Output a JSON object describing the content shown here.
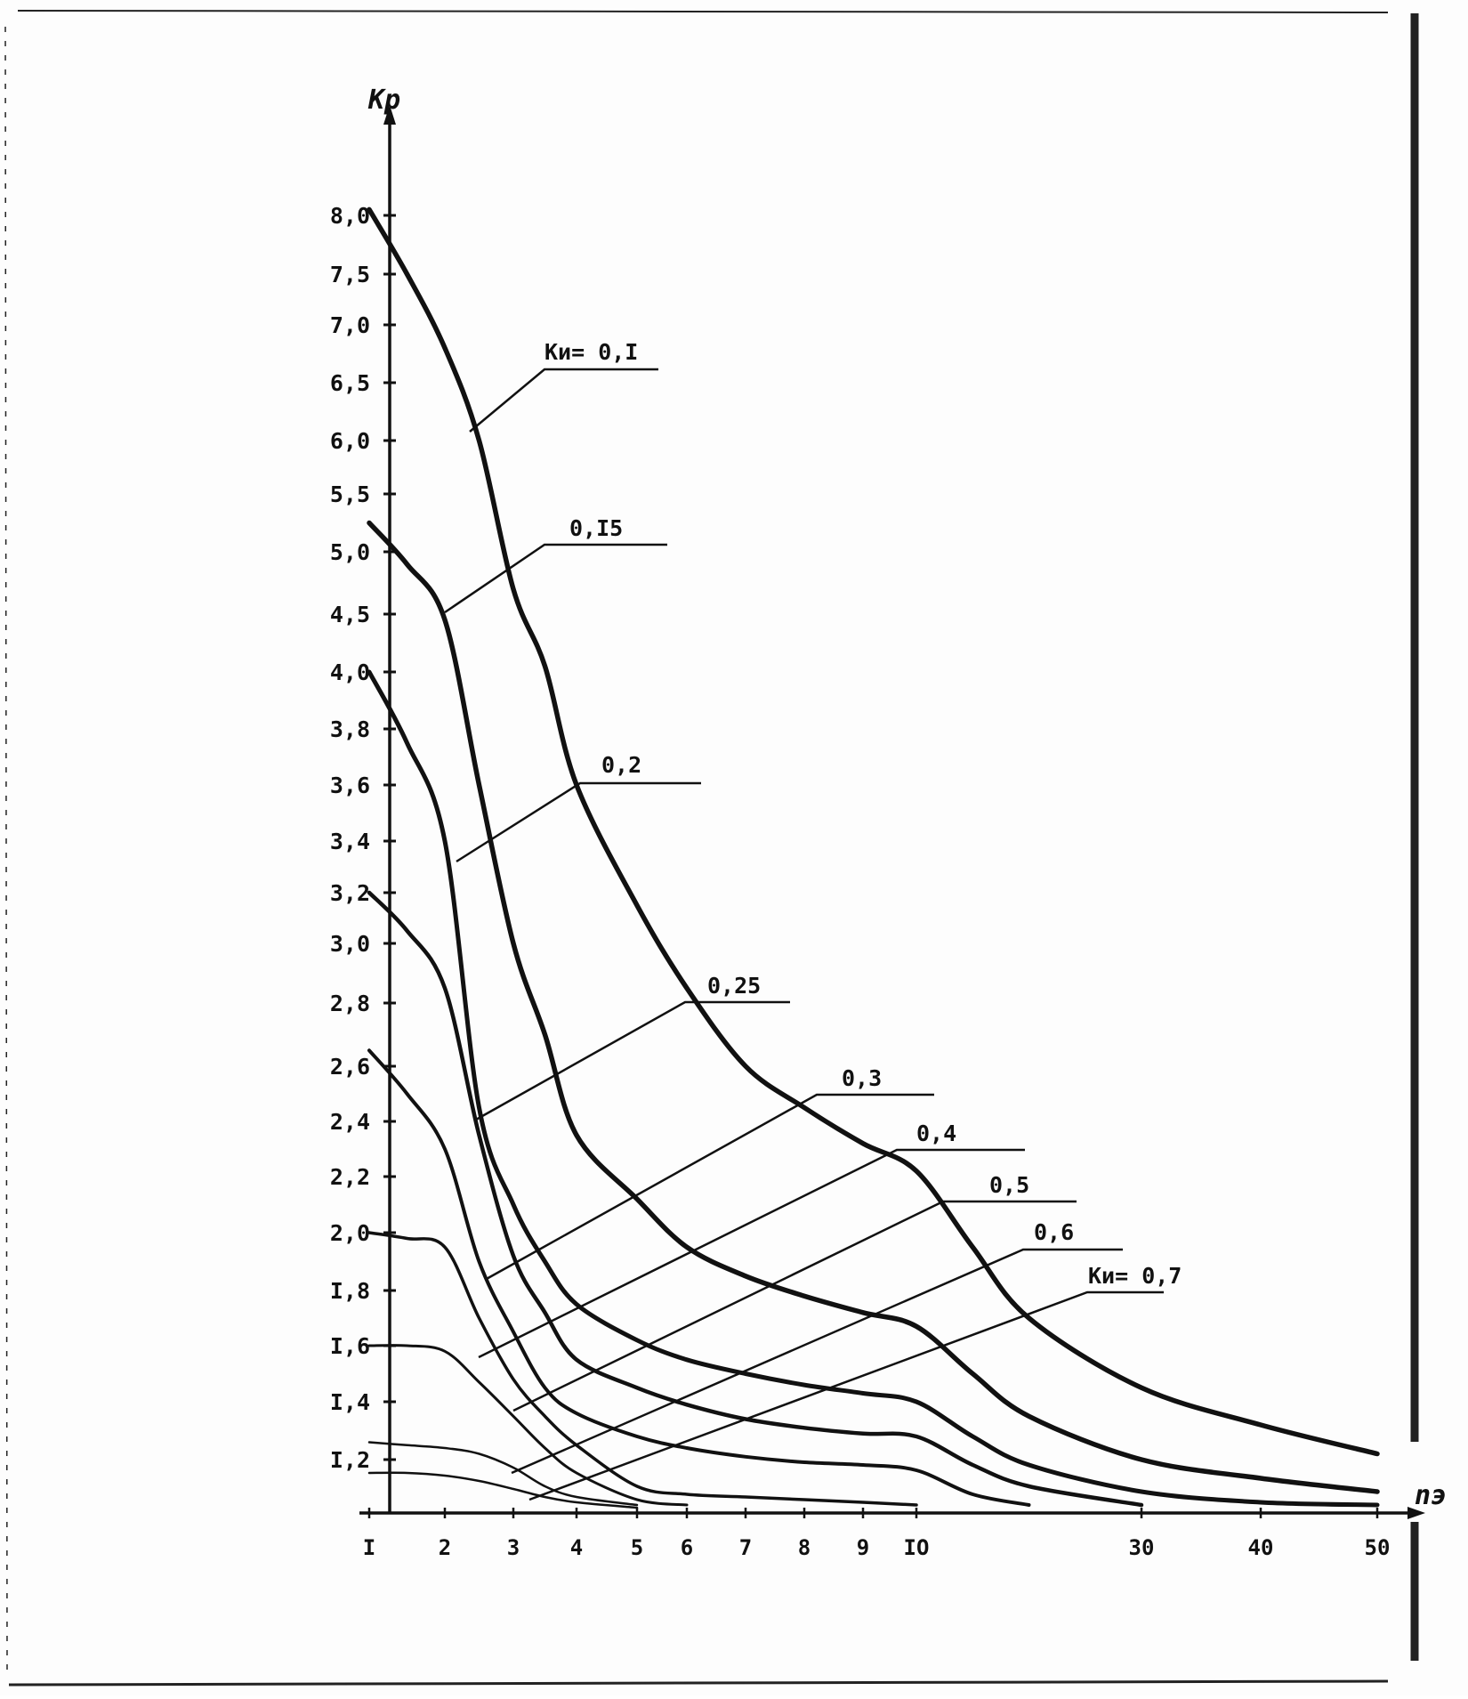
{
  "chart_data": {
    "type": "line",
    "title": "",
    "ylabel": "Kp",
    "xlabel": "nэ",
    "x_ticks": [
      "I",
      "2",
      "3",
      "4",
      "5",
      "6",
      "7",
      "8",
      "9",
      "IO",
      "30",
      "40",
      "50"
    ],
    "x_tick_values": [
      1,
      2,
      3,
      4,
      5,
      6,
      7,
      8,
      9,
      10,
      30,
      40,
      50
    ],
    "y_ticks": [
      "I,2",
      "I,4",
      "I,6",
      "I,8",
      "2,0",
      "2,2",
      "2,4",
      "2,6",
      "2,8",
      "3,0",
      "3,2",
      "3,4",
      "3,6",
      "3,8",
      "4,0",
      "4,5",
      "5,0",
      "5,5",
      "6,0",
      "6,5",
      "7,0",
      "7,5",
      "8,0"
    ],
    "y_tick_values": [
      1.2,
      1.4,
      1.6,
      1.8,
      2.0,
      2.2,
      2.4,
      2.6,
      2.8,
      3.0,
      3.2,
      3.4,
      3.6,
      3.8,
      4.0,
      4.5,
      5.0,
      5.5,
      6.0,
      6.5,
      7.0,
      7.5,
      8.0
    ],
    "x_scale": "non-uniform",
    "y_scale": "non-uniform",
    "grid": false,
    "series": [
      {
        "name": "Kи= 0,I",
        "x": [
          1,
          1.5,
          2,
          2.5,
          3,
          3.5,
          4,
          5,
          6,
          7,
          8,
          9,
          10,
          15,
          20,
          30,
          40,
          50
        ],
        "values": [
          8.05,
          7.5,
          6.8,
          6.0,
          4.7,
          4.05,
          3.6,
          3.15,
          2.85,
          2.6,
          2.45,
          2.32,
          2.22,
          1.95,
          1.7,
          1.45,
          1.32,
          1.22
        ]
      },
      {
        "name": "0,I5",
        "x": [
          1,
          1.5,
          2,
          2.5,
          3,
          3.5,
          4,
          5,
          6,
          7,
          8,
          9,
          10,
          15,
          20,
          30,
          40,
          50
        ],
        "values": [
          5.25,
          4.9,
          4.45,
          3.6,
          3.0,
          2.7,
          2.35,
          2.12,
          1.95,
          1.85,
          1.78,
          1.72,
          1.67,
          1.5,
          1.35,
          1.2,
          1.13,
          1.08
        ]
      },
      {
        "name": "0,2",
        "x": [
          1,
          1.5,
          2,
          2.5,
          3,
          3.5,
          4,
          5,
          6,
          7,
          8,
          9,
          10,
          15,
          20,
          30,
          40,
          50
        ],
        "values": [
          4.0,
          3.75,
          3.4,
          2.45,
          2.1,
          1.9,
          1.75,
          1.62,
          1.55,
          1.5,
          1.46,
          1.43,
          1.4,
          1.28,
          1.18,
          1.08,
          1.04,
          1.03
        ]
      },
      {
        "name": "0,25",
        "x": [
          1,
          1.5,
          2,
          2.5,
          3,
          3.5,
          4,
          5,
          6,
          7,
          8,
          9,
          10,
          15,
          20,
          30
        ],
        "values": [
          3.2,
          3.05,
          2.85,
          2.35,
          1.92,
          1.72,
          1.55,
          1.45,
          1.39,
          1.34,
          1.31,
          1.29,
          1.28,
          1.18,
          1.1,
          1.03
        ]
      },
      {
        "name": "0,3",
        "x": [
          1,
          1.5,
          2,
          2.5,
          3,
          3.5,
          4,
          5,
          6,
          7,
          8,
          9,
          10,
          15,
          20
        ],
        "values": [
          2.65,
          2.5,
          2.3,
          1.9,
          1.65,
          1.45,
          1.36,
          1.28,
          1.24,
          1.21,
          1.19,
          1.18,
          1.16,
          1.07,
          1.03
        ]
      },
      {
        "name": "0,4",
        "x": [
          1,
          1.5,
          2,
          2.5,
          3,
          3.5,
          4,
          5,
          6,
          7,
          8,
          9,
          10
        ],
        "values": [
          2.0,
          1.98,
          1.95,
          1.7,
          1.48,
          1.35,
          1.25,
          1.1,
          1.07,
          1.06,
          1.05,
          1.04,
          1.03
        ]
      },
      {
        "name": "0,5",
        "x": [
          1,
          1.5,
          2,
          2.5,
          3,
          3.5,
          4,
          5,
          6
        ],
        "values": [
          1.6,
          1.6,
          1.58,
          1.47,
          1.35,
          1.24,
          1.15,
          1.05,
          1.03
        ]
      },
      {
        "name": "0,6",
        "x": [
          1,
          1.5,
          2,
          2.5,
          3,
          3.5,
          4,
          5
        ],
        "values": [
          1.26,
          1.25,
          1.24,
          1.22,
          1.17,
          1.1,
          1.06,
          1.03
        ]
      },
      {
        "name": "Kи= 0,7",
        "x": [
          1,
          1.5,
          2,
          2.5,
          3,
          3.5,
          4,
          5
        ],
        "values": [
          1.15,
          1.15,
          1.14,
          1.12,
          1.09,
          1.06,
          1.04,
          1.02
        ]
      }
    ]
  }
}
